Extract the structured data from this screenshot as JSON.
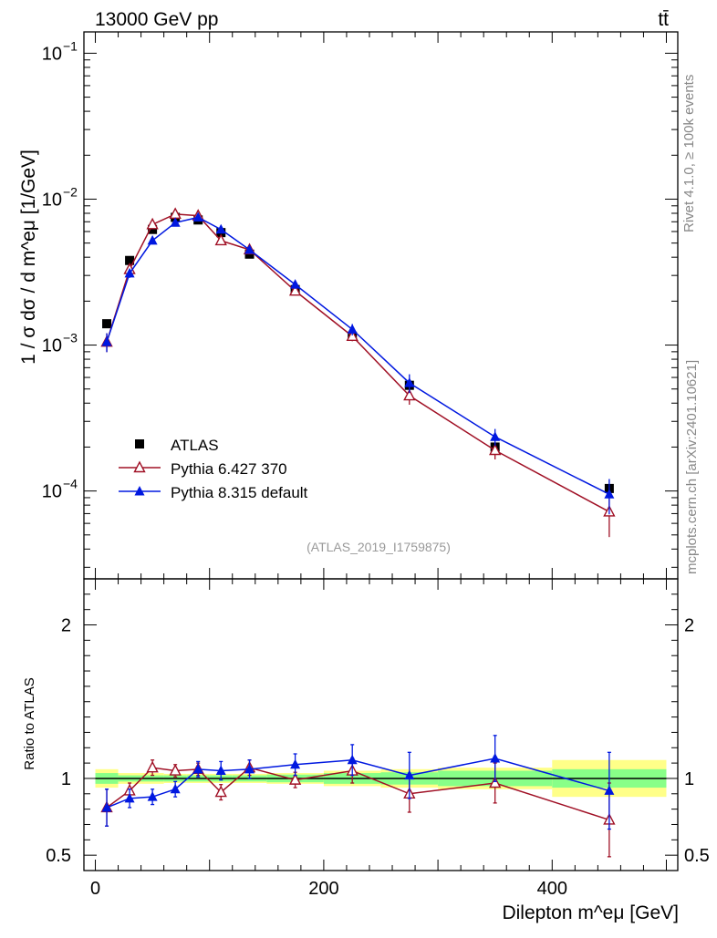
{
  "chart_data": {
    "type": "scatter",
    "header": {
      "left": "13000 GeV pp",
      "right": "tt̄"
    },
    "side_labels": {
      "top": "Rivet 4.1.0, ≥ 100k events",
      "bottom": "mcplots.cern.ch [arXiv:2401.10621]"
    },
    "analysis_id": "(ATLAS_2019_I1759875)",
    "xlabel": "Dilepton m^eμ [GeV]",
    "xlim": [
      -10,
      510
    ],
    "xticks": [
      {
        "value": 0,
        "label": "0"
      },
      {
        "value": 200,
        "label": "200"
      },
      {
        "value": 400,
        "label": "400"
      }
    ],
    "main": {
      "ylabel": "1 / σ dσ / d m^eμ [1/GeV]",
      "yscale": "log",
      "ylim": [
        2.5e-05,
        0.14
      ],
      "yticks": [
        {
          "value": 0.1,
          "base": "10",
          "exp": "−1"
        },
        {
          "value": 0.01,
          "base": "10",
          "exp": "−2"
        },
        {
          "value": 0.001,
          "base": "10",
          "exp": "−3"
        },
        {
          "value": 0.0001,
          "base": "10",
          "exp": "−4"
        }
      ]
    },
    "ratio": {
      "ylabel": "Ratio to ATLAS",
      "ylim": [
        0.4,
        2.3
      ],
      "yticks": [
        {
          "value": 0.5,
          "label": "0.5"
        },
        {
          "value": 1,
          "label": "1"
        },
        {
          "value": 2,
          "label": "2"
        }
      ]
    },
    "x": [
      10,
      30,
      50,
      70,
      90,
      110,
      135,
      175,
      225,
      275,
      350,
      450
    ],
    "bin_edges": [
      0,
      20,
      40,
      60,
      80,
      100,
      120,
      150,
      200,
      250,
      300,
      400,
      500
    ],
    "data_band": {
      "green": [
        0.035,
        0.02,
        0.02,
        0.02,
        0.02,
        0.02,
        0.02,
        0.025,
        0.035,
        0.04,
        0.05,
        0.06
      ],
      "yellow": [
        0.06,
        0.035,
        0.035,
        0.03,
        0.03,
        0.03,
        0.03,
        0.035,
        0.05,
        0.06,
        0.07,
        0.12
      ]
    },
    "legend_position": "lower-left",
    "series": [
      {
        "name": "ATLAS",
        "color": "#000000",
        "marker": "square",
        "values": [
          0.0014,
          0.0038,
          0.0062,
          0.0075,
          0.0072,
          0.0059,
          0.0042,
          0.0024,
          0.00115,
          0.00053,
          0.0002,
          0.000104
        ],
        "ratio": [
          1,
          1,
          1,
          1,
          1,
          1,
          1,
          1,
          1,
          1,
          1,
          1
        ],
        "ratio_err": [
          0,
          0,
          0,
          0,
          0,
          0,
          0,
          0,
          0,
          0,
          0,
          0
        ]
      },
      {
        "name": "Pythia 6.427 370",
        "color": "#a01025",
        "marker": "open-triangle",
        "values": [
          0.00105,
          0.0033,
          0.0067,
          0.0079,
          0.0077,
          0.0052,
          0.0045,
          0.00235,
          0.00115,
          0.00045,
          0.00019,
          7.2e-05
        ],
        "ratio": [
          0.81,
          0.92,
          1.07,
          1.05,
          1.06,
          0.91,
          1.07,
          0.99,
          1.05,
          0.9,
          0.97,
          0.73
        ],
        "ratio_err": [
          0.12,
          0.05,
          0.05,
          0.04,
          0.04,
          0.05,
          0.05,
          0.05,
          0.08,
          0.12,
          0.13,
          0.24
        ]
      },
      {
        "name": "Pythia 8.315 default",
        "color": "#0018e0",
        "marker": "filled-triangle",
        "values": [
          0.00105,
          0.0031,
          0.0052,
          0.0069,
          0.0075,
          0.0062,
          0.0045,
          0.0026,
          0.00128,
          0.00055,
          0.000235,
          9.5e-05
        ],
        "ratio": [
          0.81,
          0.87,
          0.88,
          0.93,
          1.06,
          1.05,
          1.06,
          1.09,
          1.12,
          1.02,
          1.13,
          0.92
        ],
        "ratio_err": [
          0.12,
          0.06,
          0.05,
          0.05,
          0.05,
          0.06,
          0.06,
          0.07,
          0.1,
          0.15,
          0.15,
          0.25
        ]
      }
    ]
  }
}
